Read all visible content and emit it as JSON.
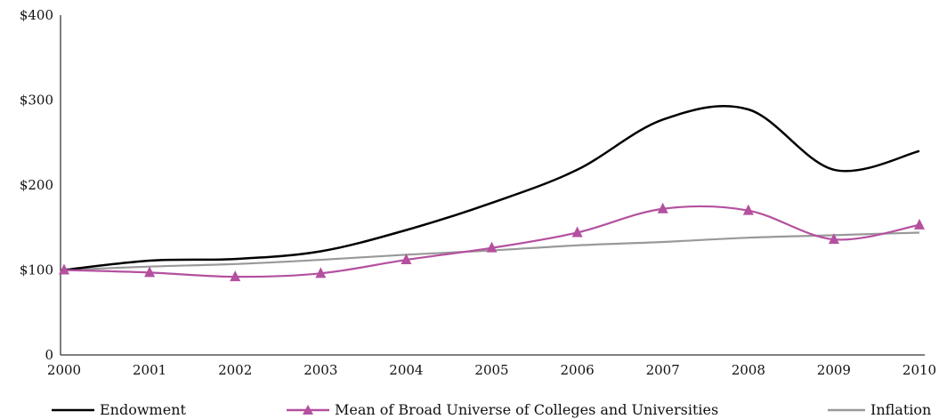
{
  "chart_data": {
    "type": "line",
    "title": "",
    "xlabel": "",
    "ylabel": "",
    "categories": [
      "2000",
      "2001",
      "2002",
      "2003",
      "2004",
      "2005",
      "2006",
      "2007",
      "2008",
      "2009",
      "2010"
    ],
    "y_ticks": [
      "0",
      "$100",
      "$200",
      "$300",
      "$400"
    ],
    "ylim": [
      0,
      400
    ],
    "grid": false,
    "legend_position": "bottom",
    "series": [
      {
        "name": "Endowment",
        "color": "#000000",
        "marker": "none",
        "values": [
          100,
          111,
          113,
          122,
          147,
          179,
          218,
          277,
          289,
          218,
          240
        ]
      },
      {
        "name": "Mean of Broad Universe of Colleges and Universities",
        "color": "#b4509f",
        "marker": "triangle",
        "values": [
          100,
          97,
          92,
          96,
          112,
          126,
          144,
          172,
          170,
          136,
          153
        ]
      },
      {
        "name": "Inflation",
        "color": "#999999",
        "marker": "none",
        "values": [
          100,
          104,
          107,
          112,
          118,
          123,
          129,
          133,
          138,
          141,
          144
        ]
      }
    ]
  }
}
